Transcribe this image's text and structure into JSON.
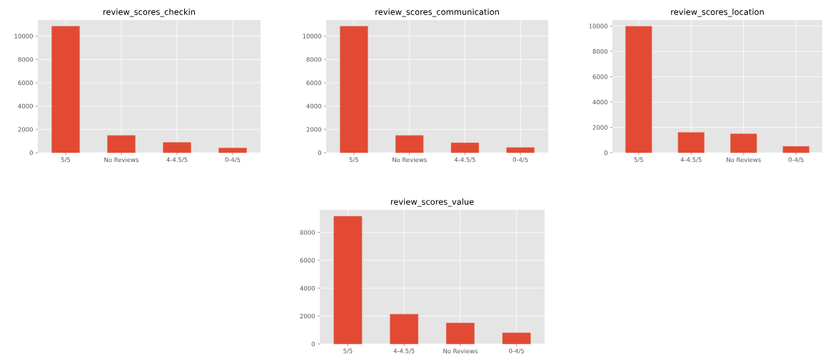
{
  "chart_data": [
    {
      "type": "bar",
      "title": "review_scores_checkin",
      "categories": [
        "5/5",
        "No Reviews",
        "4-4.5/5",
        "0-4/5"
      ],
      "values": [
        10850,
        1480,
        890,
        410
      ],
      "color": "#e24a33",
      "ylim": [
        0,
        11390
      ],
      "yticks": [
        0,
        2000,
        4000,
        6000,
        8000,
        10000
      ],
      "grid": true
    },
    {
      "type": "bar",
      "title": "review_scores_communication",
      "categories": [
        "5/5",
        "No Reviews",
        "4-4.5/5",
        "0-4/5"
      ],
      "values": [
        10850,
        1480,
        850,
        450
      ],
      "color": "#e24a33",
      "ylim": [
        0,
        11390
      ],
      "yticks": [
        0,
        2000,
        4000,
        6000,
        8000,
        10000
      ],
      "grid": true
    },
    {
      "type": "bar",
      "title": "review_scores_location",
      "categories": [
        "5/5",
        "4-4.5/5",
        "No Reviews",
        "0-4/5"
      ],
      "values": [
        9980,
        1610,
        1500,
        500
      ],
      "color": "#e24a33",
      "ylim": [
        0,
        10480
      ],
      "yticks": [
        0,
        2000,
        4000,
        6000,
        8000,
        10000
      ],
      "grid": true
    },
    {
      "type": "bar",
      "title": "review_scores_value",
      "categories": [
        "5/5",
        "4-4.5/5",
        "No Reviews",
        "0-4/5"
      ],
      "values": [
        9160,
        2140,
        1510,
        800
      ],
      "color": "#e24a33",
      "ylim": [
        0,
        9620
      ],
      "yticks": [
        0,
        2000,
        4000,
        6000,
        8000
      ],
      "grid": true
    }
  ]
}
